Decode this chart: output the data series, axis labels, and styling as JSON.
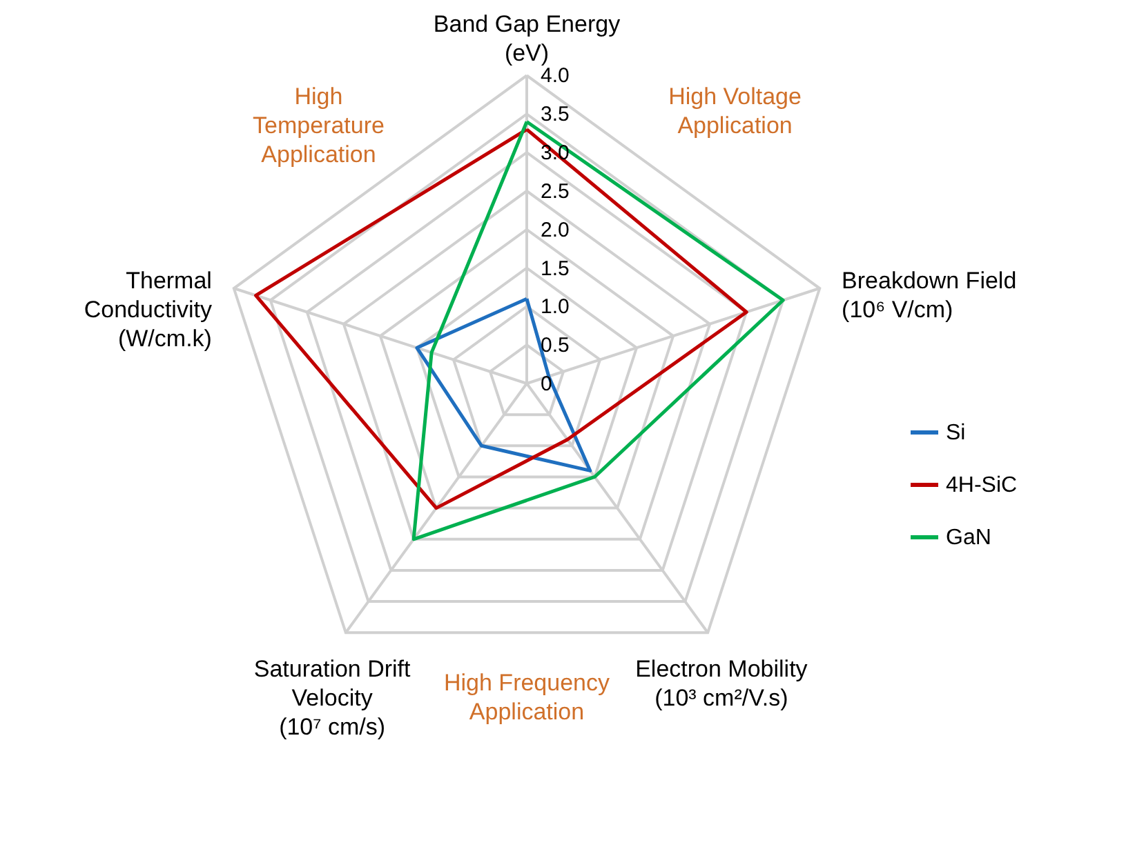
{
  "chart_data": {
    "type": "radar",
    "categories": [
      "Band Gap Energy\n(eV)",
      "Breakdown Field\n(10⁶ V/cm)",
      "Electron Mobility\n(10³ cm²/V.s)",
      "Saturation Drift\nVelocity\n(10⁷ cm/s)",
      "Thermal\nConductivity\n(W/cm.k)"
    ],
    "series": [
      {
        "name": "Si",
        "color": "#1f6fbf",
        "values": [
          1.1,
          0.3,
          1.4,
          1.0,
          1.5
        ]
      },
      {
        "name": "4H-SiC",
        "color": "#c00000",
        "values": [
          3.3,
          3.0,
          0.9,
          2.0,
          3.7
        ]
      },
      {
        "name": "GaN",
        "color": "#00b050",
        "values": [
          3.4,
          3.5,
          1.5,
          2.5,
          1.3
        ]
      }
    ],
    "ylim": [
      0,
      4.0
    ],
    "yticks": [
      0,
      0.5,
      {
        "value": 1.0,
        "label": "1.0"
      },
      1.5,
      {
        "value": 2.0,
        "label": "2.0"
      },
      2.5,
      {
        "value": 3.0,
        "label": "3.0"
      },
      3.5,
      {
        "value": 4.0,
        "label": "4.0"
      }
    ],
    "grid": true,
    "legend": "right",
    "marker": "none",
    "line_style": "solid",
    "annotations": [
      "High Voltage\nApplication",
      "High Frequency\nApplication",
      "High\nTemperature\nApplication"
    ]
  }
}
